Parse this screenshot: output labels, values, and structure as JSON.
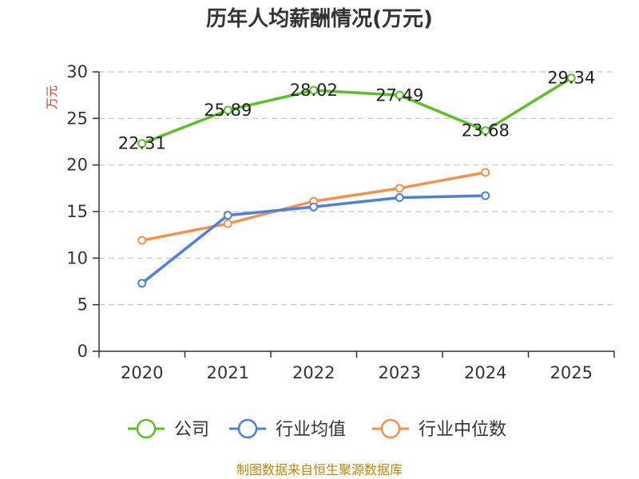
{
  "chart_data": {
    "type": "line",
    "title": "历年人均薪酬情况(万元)",
    "ylabel": "万元",
    "xlabel": "",
    "categories": [
      "2020",
      "2021",
      "2022",
      "2023",
      "2024",
      "2025"
    ],
    "ylim": [
      0,
      30
    ],
    "yticks": [
      0,
      5,
      10,
      15,
      20,
      25,
      30
    ],
    "grid": true,
    "legend_position": "bottom",
    "series": [
      {
        "name": "公司",
        "color": "#5cbf2a",
        "values": [
          22.31,
          25.89,
          28.02,
          27.49,
          23.68,
          29.34
        ],
        "labels": [
          "22.31",
          "25.89",
          "28.02",
          "27.49",
          "23.68",
          "29.34"
        ]
      },
      {
        "name": "行业均值",
        "color": "#4e7fd9",
        "values": [
          7.3,
          14.6,
          15.5,
          16.5,
          16.7,
          null
        ]
      },
      {
        "name": "行业中位数",
        "color": "#f39153",
        "values": [
          11.9,
          13.7,
          16.1,
          17.5,
          19.2,
          null
        ]
      }
    ]
  },
  "source": "制图数据来自恒生聚源数据库"
}
